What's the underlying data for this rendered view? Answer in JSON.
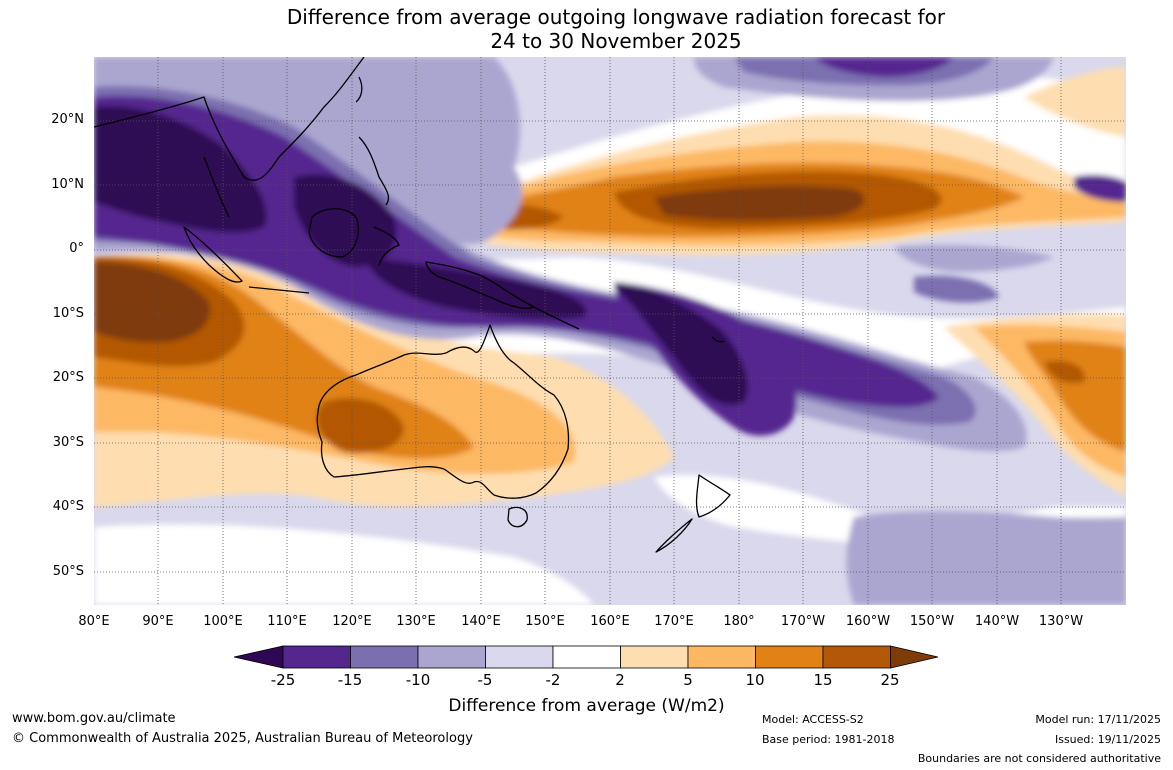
{
  "title": {
    "line1": "Difference from average outgoing longwave radiation forecast for",
    "line2": "24 to 30 November 2025"
  },
  "axes": {
    "lat_labels": [
      "20°N",
      "10°N",
      "0°",
      "10°S",
      "20°S",
      "30°S",
      "40°S",
      "50°S"
    ],
    "lon_labels": [
      "80°E",
      "90°E",
      "100°E",
      "110°E",
      "120°E",
      "130°E",
      "140°E",
      "150°E",
      "160°E",
      "170°E",
      "180°",
      "170°W",
      "160°W",
      "150°W",
      "140°W",
      "130°W"
    ]
  },
  "legend": {
    "ticks": [
      "-25",
      "-15",
      "-10",
      "-5",
      "-2",
      "2",
      "5",
      "10",
      "15",
      "25"
    ],
    "colors": [
      "#2e0854",
      "#54278f",
      "#7b6fb0",
      "#aba6d0",
      "#d9d8ec",
      "#ffffff",
      "#fedeb0",
      "#fdb863",
      "#e08214",
      "#b35806",
      "#7f3b08"
    ],
    "title": "Difference from average (W/m2)"
  },
  "footer": {
    "url": "www.bom.gov.au/climate",
    "copyright": "© Commonwealth of Australia 2025, Australian Bureau of Meteorology",
    "model": "Model: ACCESS-S2",
    "base_period": "Base period: 1981-2018",
    "model_run": "Model run: 17/11/2025",
    "issued": "Issued: 19/11/2025",
    "disclaimer": "Boundaries are not considered authoritative"
  }
}
